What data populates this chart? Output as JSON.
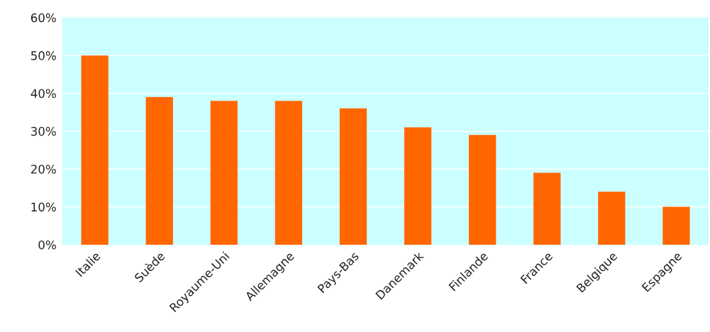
{
  "chart_data": {
    "type": "bar",
    "categories": [
      "Italie",
      "Suède",
      "Royaume-Uni",
      "Allemagne",
      "Pays-Bas",
      "Danemark",
      "Finlande",
      "France",
      "Belgique",
      "Espagne"
    ],
    "values": [
      50,
      39,
      38,
      38,
      36,
      31,
      29,
      19,
      14,
      10
    ],
    "color": "#ff6600",
    "ylim": [
      0,
      60
    ],
    "yticks": [
      {
        "value": 0,
        "label": "0%"
      },
      {
        "value": 10,
        "label": "10%"
      },
      {
        "value": 20,
        "label": "20%"
      },
      {
        "value": 30,
        "label": "30%"
      },
      {
        "value": 40,
        "label": "40%"
      },
      {
        "value": 50,
        "label": "50%"
      },
      {
        "value": 60,
        "label": "60%"
      }
    ],
    "grid": "y"
  }
}
